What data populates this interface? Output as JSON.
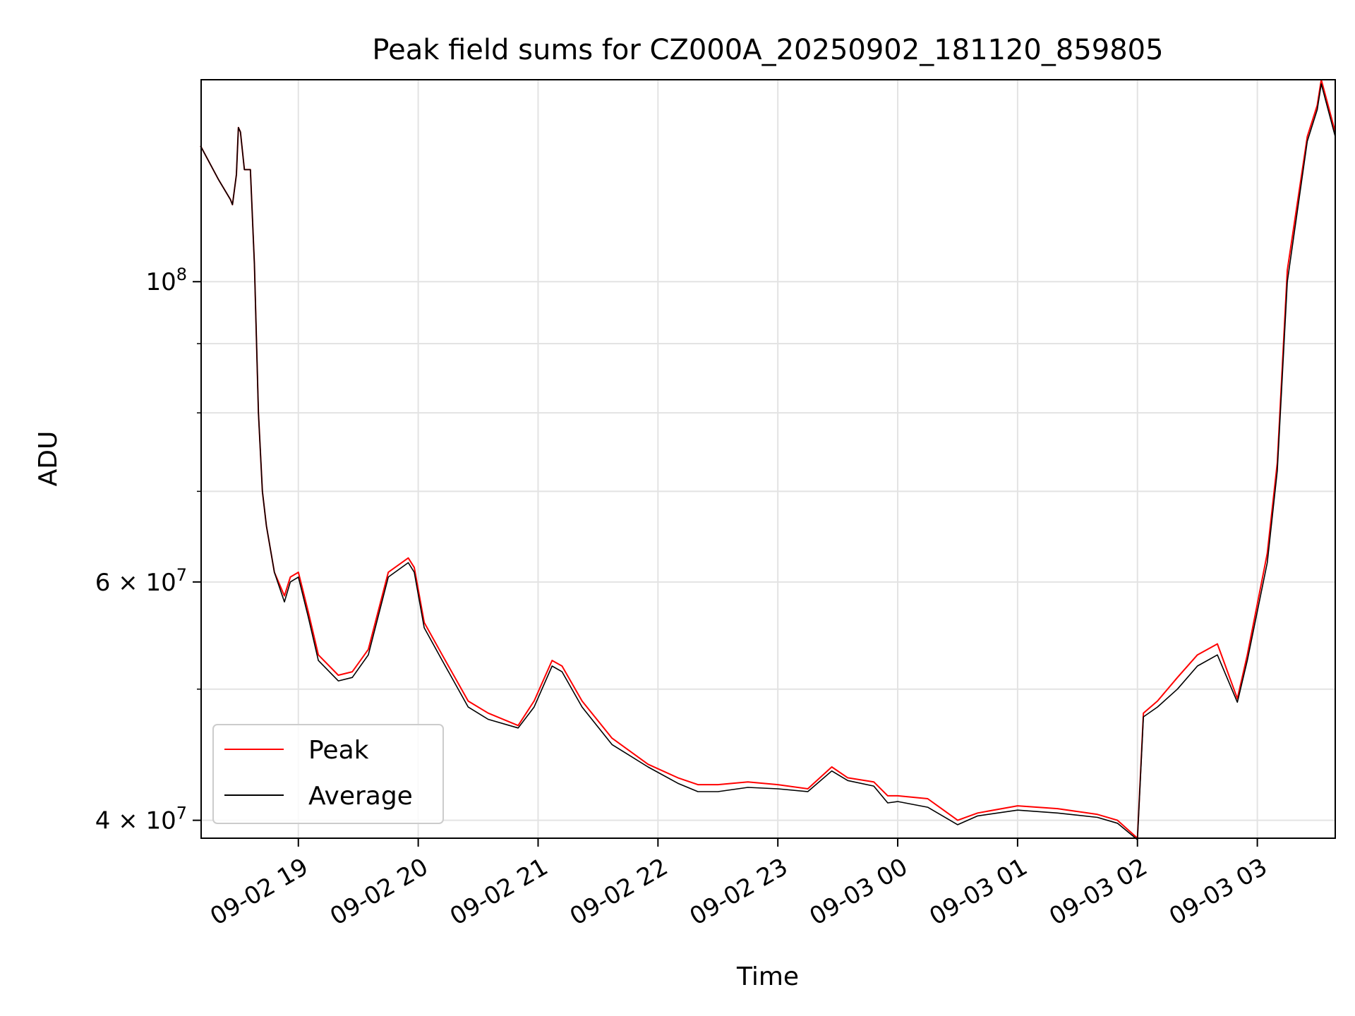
{
  "chart_data": {
    "type": "line",
    "title": "Peak field sums for CZ000A_20250902_181120_859805",
    "xlabel": "Time",
    "ylabel": "ADU",
    "y_scale": "log",
    "ylim": [
      38800000,
      141000000
    ],
    "xlim": [
      "2025-09-02 18:11:20",
      "2025-09-03 03:39:00"
    ],
    "grid": true,
    "legend_placement": "lower-left",
    "x_tick_labels": [
      "09-02 19",
      "09-02 20",
      "09-02 21",
      "09-02 22",
      "09-02 23",
      "09-03 00",
      "09-03 01",
      "09-03 02",
      "09-03 03"
    ],
    "x_tick_times": [
      "2025-09-02 19:00",
      "2025-09-02 20:00",
      "2025-09-02 21:00",
      "2025-09-02 22:00",
      "2025-09-02 23:00",
      "2025-09-03 00:00",
      "2025-09-03 01:00",
      "2025-09-03 02:00",
      "2025-09-03 03:00"
    ],
    "y_major_ticks": [
      {
        "value": 40000000,
        "mantissa": "4",
        "exponent": "7"
      },
      {
        "value": 60000000,
        "mantissa": "6",
        "exponent": "7"
      },
      {
        "value": 100000000,
        "mantissa": "",
        "exponent": "8"
      }
    ],
    "y_minor_ticks": [
      50000000,
      70000000,
      80000000,
      90000000
    ],
    "series": [
      {
        "name": "Peak",
        "color": "#ff0000",
        "x": [
          "2025-09-02 18:11",
          "2025-09-02 18:20",
          "2025-09-02 18:26",
          "2025-09-02 18:27",
          "2025-09-02 18:29",
          "2025-09-02 18:30",
          "2025-09-02 18:31",
          "2025-09-02 18:33",
          "2025-09-02 18:36",
          "2025-09-02 18:38",
          "2025-09-02 18:40",
          "2025-09-02 18:42",
          "2025-09-02 18:44",
          "2025-09-02 18:48",
          "2025-09-02 18:53",
          "2025-09-02 18:56",
          "2025-09-02 19:00",
          "2025-09-02 19:05",
          "2025-09-02 19:10",
          "2025-09-02 19:20",
          "2025-09-02 19:27",
          "2025-09-02 19:35",
          "2025-09-02 19:45",
          "2025-09-02 19:55",
          "2025-09-02 19:58",
          "2025-09-02 20:03",
          "2025-09-02 20:12",
          "2025-09-02 20:25",
          "2025-09-02 20:35",
          "2025-09-02 20:50",
          "2025-09-02 20:58",
          "2025-09-02 21:07",
          "2025-09-02 21:12",
          "2025-09-02 21:22",
          "2025-09-02 21:37",
          "2025-09-02 21:55",
          "2025-09-02 22:10",
          "2025-09-02 22:20",
          "2025-09-02 22:30",
          "2025-09-02 22:45",
          "2025-09-02 23:00",
          "2025-09-02 23:15",
          "2025-09-02 23:27",
          "2025-09-02 23:35",
          "2025-09-02 23:48",
          "2025-09-02 23:55",
          "2025-09-03 00:00",
          "2025-09-03 00:15",
          "2025-09-03 00:30",
          "2025-09-03 00:40",
          "2025-09-03 01:00",
          "2025-09-03 01:20",
          "2025-09-03 01:40",
          "2025-09-03 01:50",
          "2025-09-03 02:00",
          "2025-09-03 02:03",
          "2025-09-03 02:10",
          "2025-09-03 02:20",
          "2025-09-03 02:30",
          "2025-09-03 02:40",
          "2025-09-03 02:50",
          "2025-09-03 02:55",
          "2025-09-03 03:05",
          "2025-09-03 03:10",
          "2025-09-03 03:15",
          "2025-09-03 03:25",
          "2025-09-03 03:30",
          "2025-09-03 03:32",
          "2025-09-03 03:39"
        ],
        "values": [
          126000000,
          119000000,
          115000000,
          114000000,
          120000000,
          130000000,
          129000000,
          121000000,
          121000000,
          103000000,
          80000000,
          70000000,
          66000000,
          61000000,
          58600000,
          60500000,
          61000000,
          57000000,
          53000000,
          51200000,
          51500000,
          53500000,
          61000000,
          62500000,
          61500000,
          56000000,
          53000000,
          49000000,
          48000000,
          47000000,
          49000000,
          52500000,
          52000000,
          49000000,
          46000000,
          44000000,
          43000000,
          42500000,
          42500000,
          42700000,
          42500000,
          42200000,
          43800000,
          43000000,
          42700000,
          41700000,
          41700000,
          41500000,
          40000000,
          40500000,
          41000000,
          40800000,
          40400000,
          40000000,
          38800000,
          48000000,
          49000000,
          51000000,
          53000000,
          54000000,
          49200000,
          53000000,
          63000000,
          73500000,
          102000000,
          128000000,
          135000000,
          141000000,
          129000000
        ]
      },
      {
        "name": "Average",
        "color": "#000000",
        "x": [
          "2025-09-02 18:11",
          "2025-09-02 18:20",
          "2025-09-02 18:26",
          "2025-09-02 18:27",
          "2025-09-02 18:29",
          "2025-09-02 18:30",
          "2025-09-02 18:31",
          "2025-09-02 18:33",
          "2025-09-02 18:36",
          "2025-09-02 18:38",
          "2025-09-02 18:40",
          "2025-09-02 18:42",
          "2025-09-02 18:44",
          "2025-09-02 18:48",
          "2025-09-02 18:53",
          "2025-09-02 18:56",
          "2025-09-02 19:00",
          "2025-09-02 19:05",
          "2025-09-02 19:10",
          "2025-09-02 19:20",
          "2025-09-02 19:27",
          "2025-09-02 19:35",
          "2025-09-02 19:45",
          "2025-09-02 19:55",
          "2025-09-02 19:58",
          "2025-09-02 20:03",
          "2025-09-02 20:12",
          "2025-09-02 20:25",
          "2025-09-02 20:35",
          "2025-09-02 20:50",
          "2025-09-02 20:58",
          "2025-09-02 21:07",
          "2025-09-02 21:12",
          "2025-09-02 21:22",
          "2025-09-02 21:37",
          "2025-09-02 21:55",
          "2025-09-02 22:10",
          "2025-09-02 22:20",
          "2025-09-02 22:30",
          "2025-09-02 22:45",
          "2025-09-02 23:00",
          "2025-09-02 23:15",
          "2025-09-02 23:27",
          "2025-09-02 23:35",
          "2025-09-02 23:48",
          "2025-09-02 23:55",
          "2025-09-03 00:00",
          "2025-09-03 00:15",
          "2025-09-03 00:30",
          "2025-09-03 00:40",
          "2025-09-03 01:00",
          "2025-09-03 01:20",
          "2025-09-03 01:40",
          "2025-09-03 01:50",
          "2025-09-03 02:00",
          "2025-09-03 02:03",
          "2025-09-03 02:10",
          "2025-09-03 02:20",
          "2025-09-03 02:30",
          "2025-09-03 02:40",
          "2025-09-03 02:50",
          "2025-09-03 02:55",
          "2025-09-03 03:05",
          "2025-09-03 03:10",
          "2025-09-03 03:15",
          "2025-09-03 03:25",
          "2025-09-03 03:30",
          "2025-09-03 03:32",
          "2025-09-03 03:39"
        ],
        "values": [
          126000000,
          119000000,
          115000000,
          114000000,
          120000000,
          130000000,
          129000000,
          121000000,
          121000000,
          103000000,
          80000000,
          70000000,
          66000000,
          61000000,
          58000000,
          60000000,
          60500000,
          56500000,
          52500000,
          50700000,
          51000000,
          53000000,
          60500000,
          62000000,
          61000000,
          55500000,
          52500000,
          48500000,
          47500000,
          46800000,
          48500000,
          52000000,
          51500000,
          48500000,
          45500000,
          43800000,
          42600000,
          42000000,
          42000000,
          42300000,
          42200000,
          42000000,
          43500000,
          42800000,
          42400000,
          41200000,
          41300000,
          40900000,
          39700000,
          40300000,
          40700000,
          40500000,
          40200000,
          39800000,
          38700000,
          47700000,
          48500000,
          50000000,
          52000000,
          53000000,
          48900000,
          52500000,
          62000000,
          72500000,
          100000000,
          127000000,
          134000000,
          140000000,
          128000000
        ]
      }
    ]
  }
}
